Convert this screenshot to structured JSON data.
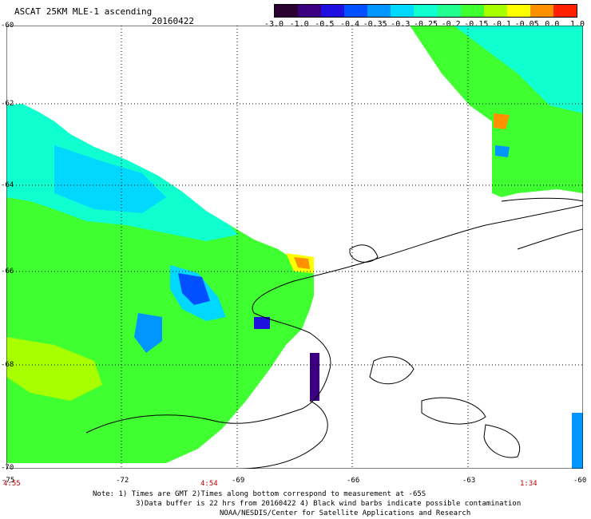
{
  "header": {
    "title": "ASCAT 25KM MLE-1 ascending",
    "date": "20160422"
  },
  "colorbar": {
    "labels": [
      "-3.0",
      "-1.0",
      "-0.5",
      "-0.4",
      "-0.35",
      "-0.3",
      "-0.25",
      "-0.2",
      "-0.15",
      "-0.1",
      "-0.05",
      "0.0",
      "1.0"
    ],
    "colors": [
      "#2a0030",
      "#3a0080",
      "#2010e0",
      "#0050ff",
      "#0095ff",
      "#00d8ff",
      "#10ffd0",
      "#20ff90",
      "#40ff30",
      "#a8ff00",
      "#ffff00",
      "#ff9000",
      "#ff2000"
    ]
  },
  "axes": {
    "lat_labels": [
      "-60",
      "-62",
      "-64",
      "-66",
      "-68",
      "-70"
    ],
    "lon_labels": [
      "-75",
      "-72",
      "-69",
      "-66",
      "-63",
      "-60"
    ],
    "time_labels": [
      "4:55",
      "4:54",
      "1:34"
    ]
  },
  "notes": {
    "line1": "Note: 1) Times are GMT 2)Times along bottom correspond to measurement at -65S",
    "line2": "3)Data buffer is 22 hrs from 20160422 4) Black wind barbs indicate possible contamination",
    "line3": "NOAA/NESDIS/Center for Satellite Applications and Research"
  },
  "colors": {
    "background": "#ffffff",
    "land_outline": "#000000",
    "grid": "#000000",
    "time_label": "#c00000"
  }
}
